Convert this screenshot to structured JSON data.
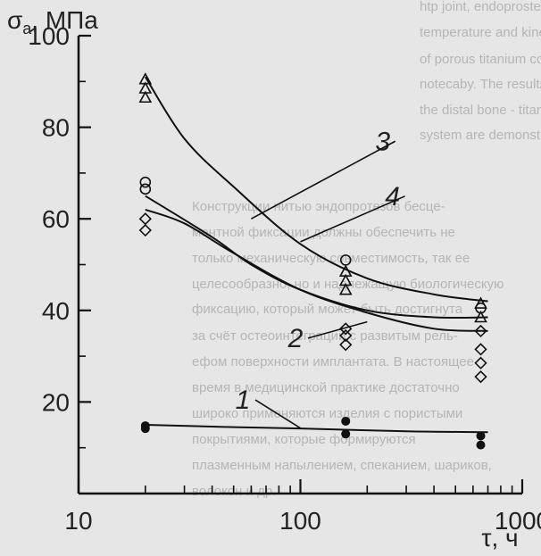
{
  "background_text": [
    "htp joint, endoprostesis. Experimental",
    "temperature and kinetic parameters of",
    "of porous titanium coatings sprayed o",
    "notecaby. The results of analysis of stress",
    "the distal bone - titanium based Bi-Ti coat",
    "system are demonstrated.",
    "Конструкции нитью эндопротезов бесце-",
    "ментной фиксации должны обеспечить не",
    "только механическую совместимость, так ее",
    "целесообразно, но и надлежащую биологическую",
    "фиксацию, который может быть достигнута",
    "за счёт остеоинтеграции с развитым рель-",
    "ефом поверхности имплантата. В настоящее",
    "время в медицинской практике достаточно",
    "широко применяются изделия с пористыми",
    "покрытиями, которые формируются",
    "плазменным напылением, спеканием, шариков,",
    "волокон и др."
  ],
  "chart_data": {
    "type": "scatter",
    "xscale": "log",
    "ylabel": "σ",
    "ylabel_sub": "a",
    "ylabel_unit": ", МПа",
    "xlabel": "τ, ч",
    "xlim": [
      10,
      1000
    ],
    "ylim": [
      0,
      100
    ],
    "x_ticks": [
      {
        "value": 10,
        "label": "10"
      },
      {
        "value": 100,
        "label": "100"
      },
      {
        "value": 1000,
        "label": "1000"
      }
    ],
    "y_ticks": [
      {
        "value": 20,
        "label": "20"
      },
      {
        "value": 40,
        "label": "40"
      },
      {
        "value": 60,
        "label": "60"
      },
      {
        "value": 80,
        "label": "80"
      },
      {
        "value": 100,
        "label": "100"
      }
    ],
    "series": [
      {
        "marker": "triangle",
        "points": [
          [
            20,
            90.5
          ],
          [
            20,
            88.5
          ],
          [
            20,
            86.5
          ],
          [
            160,
            48.5
          ],
          [
            160,
            46.5
          ],
          [
            160,
            44.5
          ],
          [
            650,
            41.5
          ],
          [
            650,
            38.5
          ]
        ]
      },
      {
        "marker": "circle",
        "points": [
          [
            20,
            68.0
          ],
          [
            20,
            66.5
          ],
          [
            160,
            51.0
          ],
          [
            650,
            40.5
          ]
        ]
      },
      {
        "marker": "diamond",
        "points": [
          [
            20,
            60.0
          ],
          [
            20,
            57.5
          ],
          [
            160,
            36.0
          ],
          [
            160,
            34.5
          ],
          [
            160,
            32.5
          ],
          [
            650,
            35.5
          ],
          [
            650,
            31.5
          ],
          [
            650,
            28.5
          ],
          [
            650,
            25.5
          ]
        ]
      },
      {
        "marker": "filled-circle",
        "points": [
          [
            20,
            14.8
          ],
          [
            20,
            14.2
          ],
          [
            160,
            15.8
          ],
          [
            160,
            13.0
          ],
          [
            650,
            12.6
          ],
          [
            650,
            10.6
          ]
        ]
      }
    ],
    "curves": [
      {
        "label": "1",
        "points": [
          [
            20,
            15.0
          ],
          [
            50,
            14.5
          ],
          [
            100,
            14.2
          ],
          [
            300,
            13.6
          ],
          [
            700,
            13.4
          ]
        ]
      },
      {
        "label": "2",
        "points": [
          [
            20,
            65.0
          ],
          [
            40,
            56.0
          ],
          [
            60,
            50.0
          ],
          [
            100,
            44.5
          ],
          [
            200,
            40.0
          ],
          [
            400,
            38.5
          ],
          [
            700,
            38.5
          ]
        ]
      },
      {
        "label": "3",
        "points": [
          [
            20,
            91.0
          ],
          [
            30,
            77.5
          ],
          [
            50,
            67.0
          ],
          [
            100,
            54.5
          ],
          [
            200,
            47.0
          ],
          [
            400,
            43.5
          ],
          [
            700,
            42.0
          ]
        ]
      },
      {
        "label": "4",
        "points": [
          [
            20,
            62.0
          ],
          [
            30,
            59.0
          ],
          [
            50,
            52.5
          ],
          [
            100,
            44.5
          ],
          [
            200,
            39.5
          ],
          [
            400,
            36.0
          ],
          [
            700,
            35.5
          ]
        ]
      }
    ],
    "curve_labels": [
      {
        "text": "1",
        "x": 55,
        "y": 18.5,
        "leader_to": [
          100,
          14.3
        ]
      },
      {
        "text": "2",
        "x": 95,
        "y": 32.0,
        "leader_to": [
          200,
          37.5
        ]
      },
      {
        "text": "3",
        "x": 235,
        "y": 75.0,
        "leader_to": [
          60,
          60.0
        ]
      },
      {
        "text": "4",
        "x": 260,
        "y": 63.0,
        "leader_to": [
          100,
          55.0
        ]
      }
    ]
  }
}
